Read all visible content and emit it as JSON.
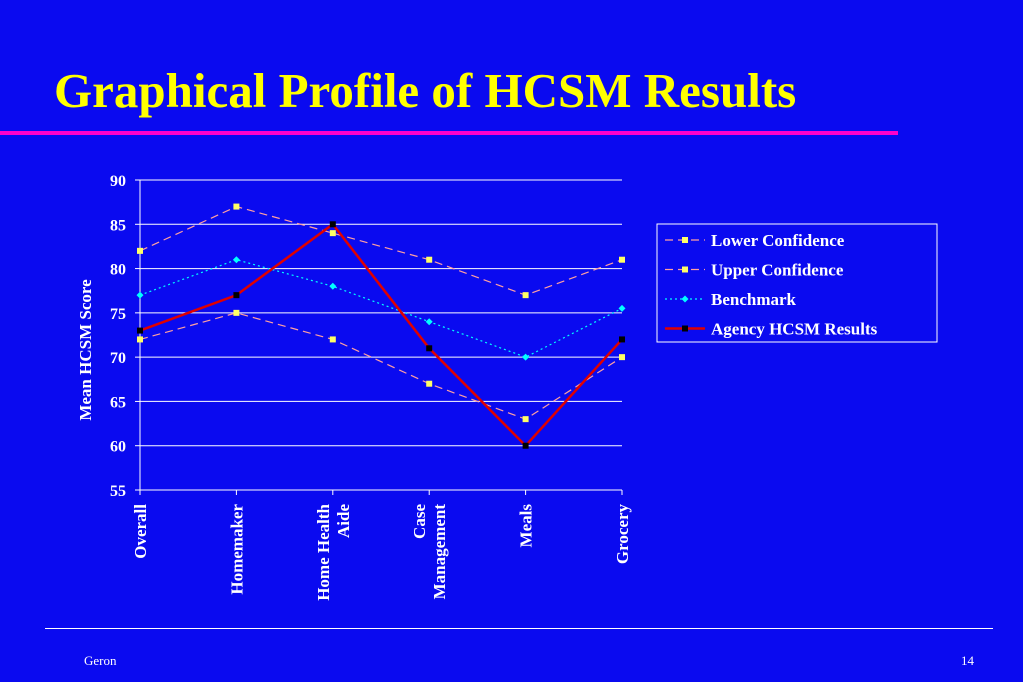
{
  "slide": {
    "title": "Graphical Profile of HCSM Results",
    "footer_left": "Geron",
    "page_number": "14"
  },
  "colors": {
    "background": "#0a0af0",
    "title": "#ffff00",
    "rule": "#ff00cc",
    "confidence": "#ffa0a0",
    "confidence_marker": "#ffff66",
    "benchmark": "#00ffff",
    "agency": "#e00000"
  },
  "chart_data": {
    "type": "line",
    "title": "",
    "xlabel": "",
    "ylabel": "Mean HCSM Score",
    "ylim": [
      55,
      90
    ],
    "yticks": [
      55,
      60,
      65,
      70,
      75,
      80,
      85,
      90
    ],
    "grid": true,
    "legend_position": "right",
    "categories": [
      [
        "Overall"
      ],
      [
        "Homemaker"
      ],
      [
        "Home Health",
        "Aide"
      ],
      [
        "Case",
        "Management"
      ],
      [
        "Meals"
      ],
      [
        "Grocery"
      ]
    ],
    "series": [
      {
        "name": "Lower Confidence",
        "values": [
          72,
          75,
          72,
          67,
          63,
          70
        ],
        "style": "dashed",
        "marker": "square",
        "color": "#ffa0a0"
      },
      {
        "name": "Upper Confidence",
        "values": [
          82,
          87,
          84,
          81,
          77,
          81
        ],
        "style": "dashed",
        "marker": "square",
        "color": "#ffa0a0"
      },
      {
        "name": "Benchmark",
        "values": [
          77,
          81,
          78,
          74,
          70,
          75.5
        ],
        "style": "dotted",
        "marker": "diamond",
        "color": "#00ffff"
      },
      {
        "name": "Agency HCSM Results",
        "values": [
          73,
          77,
          85,
          71,
          60,
          72
        ],
        "style": "solid",
        "marker": "square",
        "color": "#e00000"
      }
    ]
  }
}
